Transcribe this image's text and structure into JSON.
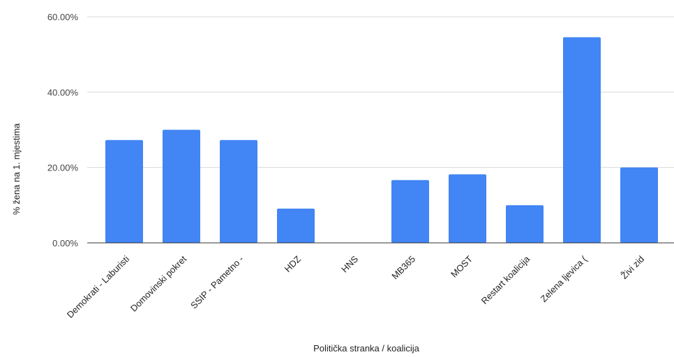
{
  "chart_data": {
    "type": "bar",
    "title": "",
    "xlabel": "Politička stranka / koalicija",
    "ylabel": "% žena na 1. mjestima",
    "categories": [
      "Demokrati - Laburisti",
      "Domovinski pokret",
      "SSIP - Pametno -",
      "HDZ",
      "HNS",
      "MB365",
      "MOST",
      "Restart koalicija",
      "Zelena ljevica (",
      "Živi zid"
    ],
    "values": [
      27.27,
      30.0,
      27.27,
      9.09,
      0.0,
      16.67,
      18.18,
      10.0,
      54.55,
      20.0
    ],
    "ylim": [
      0,
      60
    ],
    "yticks": [
      0,
      20,
      40,
      60
    ],
    "ytick_labels": [
      "0.00%",
      "20.00%",
      "40.00%",
      "60.00%"
    ],
    "grid": true,
    "legend": "none",
    "bar_color": "#4285f4"
  }
}
